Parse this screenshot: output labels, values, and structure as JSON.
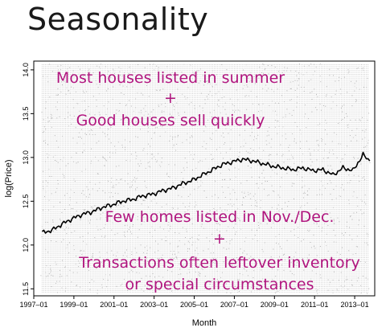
{
  "slide_title": "Seasonality",
  "chart_data": {
    "type": "line",
    "xlabel": "Month",
    "ylabel": "log(Price)",
    "x_range": [
      "1997-01",
      "2014-01"
    ],
    "ylim": [
      11.42,
      14.1
    ],
    "x_ticks": [
      "1997–01",
      "1999–01",
      "2001–01",
      "2003–01",
      "2005–01",
      "2007–01",
      "2009–01",
      "2011–01",
      "2013–01"
    ],
    "y_ticks": [
      "11.5",
      "12.0",
      "12.5",
      "13.0",
      "13.5",
      "14.0"
    ],
    "background": "dense grey scatter of individual sales with a vertical stripe at each month",
    "series": [
      {
        "color": "#000000",
        "x": [
          "1997-06",
          "1997-12",
          "1998-06",
          "1998-12",
          "1999-06",
          "1999-12",
          "2000-06",
          "2000-12",
          "2001-06",
          "2001-12",
          "2002-06",
          "2002-12",
          "2003-06",
          "2003-12",
          "2004-06",
          "2004-12",
          "2005-06",
          "2005-12",
          "2006-06",
          "2006-12",
          "2007-06",
          "2007-12",
          "2008-06",
          "2008-12",
          "2009-06",
          "2009-12",
          "2010-06",
          "2010-12",
          "2011-06",
          "2011-12",
          "2012-06",
          "2012-12",
          "2013-06",
          "2013-10"
        ],
        "y": [
          12.14,
          12.17,
          12.24,
          12.3,
          12.35,
          12.38,
          12.43,
          12.46,
          12.5,
          12.52,
          12.56,
          12.58,
          12.62,
          12.65,
          12.7,
          12.74,
          12.8,
          12.86,
          12.92,
          12.95,
          12.98,
          12.96,
          12.93,
          12.9,
          12.88,
          12.86,
          12.88,
          12.85,
          12.86,
          12.8,
          12.88,
          12.85,
          13.03,
          12.96
        ]
      }
    ],
    "annotations": [
      "Most houses listed in summer",
      "+",
      "Good houses sell quickly",
      "Few homes listed in Nov./Dec.",
      "+",
      "Transactions often leftover inventory",
      "or special circumstances"
    ]
  }
}
